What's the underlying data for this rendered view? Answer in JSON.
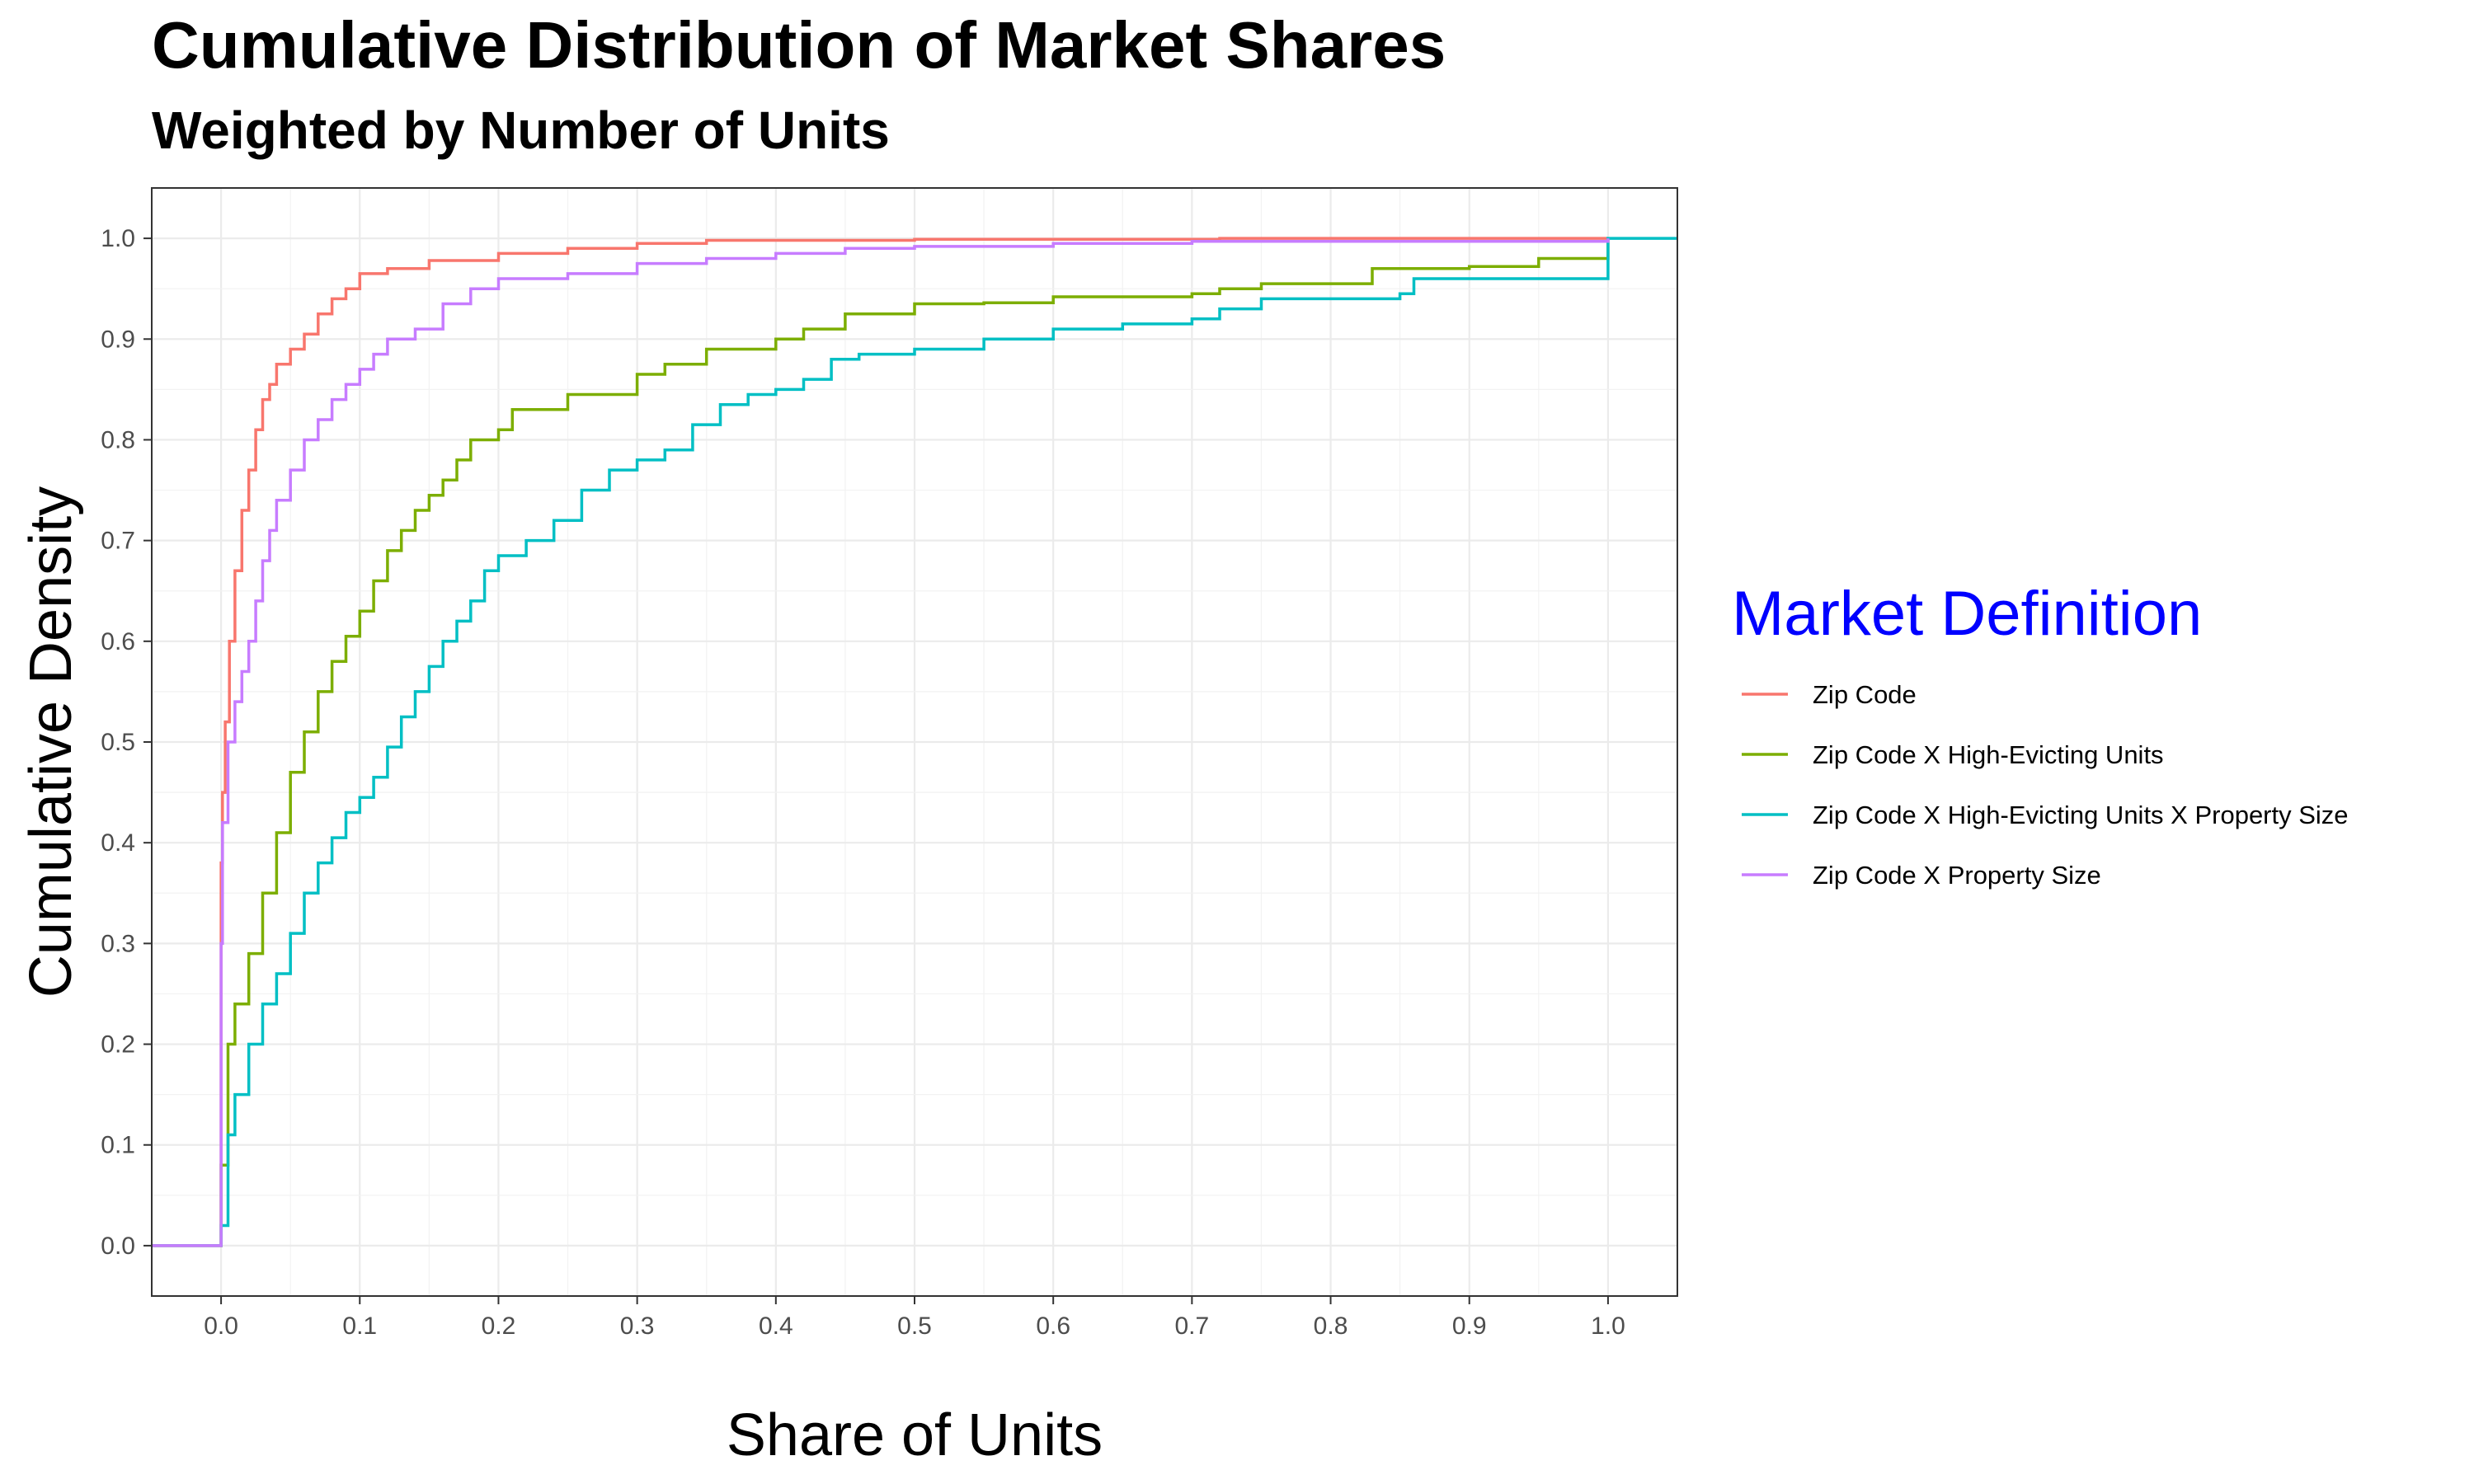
{
  "chart_data": {
    "type": "line",
    "step": true,
    "title": "Cumulative Distribution of Market Shares",
    "subtitle": "Weighted by Number of Units",
    "xlabel": "Share of Units",
    "ylabel": "Cumulative Density",
    "xlim": [
      -0.05,
      1.05
    ],
    "ylim": [
      -0.05,
      1.05
    ],
    "x_ticks": [
      0.0,
      0.1,
      0.2,
      0.3,
      0.4,
      0.5,
      0.6,
      0.7,
      0.8,
      0.9,
      1.0
    ],
    "x_tick_labels": [
      "0.0",
      "0.1",
      "0.2",
      "0.3",
      "0.4",
      "0.5",
      "0.6",
      "0.7",
      "0.8",
      "0.9",
      "1.0"
    ],
    "y_ticks": [
      0.0,
      0.1,
      0.2,
      0.3,
      0.4,
      0.5,
      0.6,
      0.7,
      0.8,
      0.9,
      1.0
    ],
    "y_tick_labels": [
      "0.0",
      "0.1",
      "0.2",
      "0.3",
      "0.4",
      "0.5",
      "0.6",
      "0.7",
      "0.8",
      "0.9",
      "1.0"
    ],
    "grid": true,
    "legend": {
      "title": "Market Definition",
      "title_color": "#0000ff",
      "placement": "right"
    },
    "series": [
      {
        "name": "Zip Code",
        "color": "#F8766D",
        "points": [
          [
            -0.05,
            0
          ],
          [
            0,
            0
          ],
          [
            0,
            0.38
          ],
          [
            0.001,
            0.45
          ],
          [
            0.003,
            0.52
          ],
          [
            0.006,
            0.6
          ],
          [
            0.01,
            0.67
          ],
          [
            0.015,
            0.73
          ],
          [
            0.02,
            0.77
          ],
          [
            0.025,
            0.81
          ],
          [
            0.03,
            0.84
          ],
          [
            0.035,
            0.855
          ],
          [
            0.04,
            0.875
          ],
          [
            0.05,
            0.89
          ],
          [
            0.06,
            0.905
          ],
          [
            0.07,
            0.925
          ],
          [
            0.08,
            0.94
          ],
          [
            0.09,
            0.95
          ],
          [
            0.1,
            0.965
          ],
          [
            0.12,
            0.97
          ],
          [
            0.15,
            0.978
          ],
          [
            0.2,
            0.985
          ],
          [
            0.25,
            0.99
          ],
          [
            0.3,
            0.995
          ],
          [
            0.35,
            0.998
          ],
          [
            0.5,
            0.999
          ],
          [
            0.72,
            1.0
          ],
          [
            1.0,
            1.0
          ]
        ]
      },
      {
        "name": "Zip Code X High-Evicting Units",
        "color": "#7CAE00",
        "points": [
          [
            -0.05,
            0
          ],
          [
            0,
            0
          ],
          [
            0,
            0.08
          ],
          [
            0.005,
            0.2
          ],
          [
            0.01,
            0.24
          ],
          [
            0.02,
            0.29
          ],
          [
            0.03,
            0.35
          ],
          [
            0.04,
            0.41
          ],
          [
            0.05,
            0.47
          ],
          [
            0.06,
            0.51
          ],
          [
            0.07,
            0.55
          ],
          [
            0.08,
            0.58
          ],
          [
            0.09,
            0.605
          ],
          [
            0.1,
            0.63
          ],
          [
            0.11,
            0.66
          ],
          [
            0.12,
            0.69
          ],
          [
            0.13,
            0.71
          ],
          [
            0.14,
            0.73
          ],
          [
            0.15,
            0.745
          ],
          [
            0.16,
            0.76
          ],
          [
            0.17,
            0.78
          ],
          [
            0.18,
            0.8
          ],
          [
            0.2,
            0.81
          ],
          [
            0.21,
            0.83
          ],
          [
            0.25,
            0.845
          ],
          [
            0.3,
            0.865
          ],
          [
            0.32,
            0.875
          ],
          [
            0.35,
            0.89
          ],
          [
            0.4,
            0.9
          ],
          [
            0.42,
            0.91
          ],
          [
            0.45,
            0.925
          ],
          [
            0.5,
            0.935
          ],
          [
            0.55,
            0.936
          ],
          [
            0.6,
            0.942
          ],
          [
            0.7,
            0.945
          ],
          [
            0.72,
            0.95
          ],
          [
            0.75,
            0.955
          ],
          [
            0.8,
            0.955
          ],
          [
            0.83,
            0.97
          ],
          [
            0.9,
            0.972
          ],
          [
            0.95,
            0.98
          ],
          [
            1.0,
            0.985
          ],
          [
            1.0,
            1.0
          ]
        ]
      },
      {
        "name": "Zip Code X High-Evicting Units X Property Size",
        "color": "#00BFC4",
        "points": [
          [
            -0.05,
            0
          ],
          [
            0,
            0
          ],
          [
            0,
            0.02
          ],
          [
            0.005,
            0.11
          ],
          [
            0.01,
            0.15
          ],
          [
            0.02,
            0.2
          ],
          [
            0.03,
            0.24
          ],
          [
            0.04,
            0.27
          ],
          [
            0.05,
            0.31
          ],
          [
            0.06,
            0.35
          ],
          [
            0.07,
            0.38
          ],
          [
            0.08,
            0.405
          ],
          [
            0.09,
            0.43
          ],
          [
            0.1,
            0.445
          ],
          [
            0.11,
            0.465
          ],
          [
            0.12,
            0.495
          ],
          [
            0.13,
            0.525
          ],
          [
            0.14,
            0.55
          ],
          [
            0.15,
            0.575
          ],
          [
            0.16,
            0.6
          ],
          [
            0.17,
            0.62
          ],
          [
            0.18,
            0.64
          ],
          [
            0.19,
            0.67
          ],
          [
            0.2,
            0.685
          ],
          [
            0.22,
            0.7
          ],
          [
            0.24,
            0.72
          ],
          [
            0.26,
            0.75
          ],
          [
            0.28,
            0.77
          ],
          [
            0.3,
            0.78
          ],
          [
            0.32,
            0.79
          ],
          [
            0.34,
            0.815
          ],
          [
            0.36,
            0.835
          ],
          [
            0.38,
            0.845
          ],
          [
            0.4,
            0.85
          ],
          [
            0.42,
            0.86
          ],
          [
            0.44,
            0.88
          ],
          [
            0.46,
            0.885
          ],
          [
            0.5,
            0.89
          ],
          [
            0.55,
            0.9
          ],
          [
            0.6,
            0.91
          ],
          [
            0.65,
            0.915
          ],
          [
            0.7,
            0.92
          ],
          [
            0.72,
            0.93
          ],
          [
            0.75,
            0.94
          ],
          [
            0.85,
            0.945
          ],
          [
            0.86,
            0.96
          ],
          [
            1.0,
            0.96
          ],
          [
            1.0,
            1.0
          ],
          [
            1.05,
            1.0
          ]
        ]
      },
      {
        "name": "Zip Code X Property Size",
        "color": "#C77CFF",
        "points": [
          [
            -0.05,
            0
          ],
          [
            0,
            0
          ],
          [
            0,
            0.3
          ],
          [
            0.001,
            0.42
          ],
          [
            0.005,
            0.5
          ],
          [
            0.01,
            0.54
          ],
          [
            0.015,
            0.57
          ],
          [
            0.02,
            0.6
          ],
          [
            0.025,
            0.64
          ],
          [
            0.03,
            0.68
          ],
          [
            0.035,
            0.71
          ],
          [
            0.04,
            0.74
          ],
          [
            0.05,
            0.77
          ],
          [
            0.06,
            0.8
          ],
          [
            0.07,
            0.82
          ],
          [
            0.08,
            0.84
          ],
          [
            0.09,
            0.855
          ],
          [
            0.1,
            0.87
          ],
          [
            0.11,
            0.885
          ],
          [
            0.12,
            0.9
          ],
          [
            0.14,
            0.91
          ],
          [
            0.16,
            0.935
          ],
          [
            0.18,
            0.95
          ],
          [
            0.2,
            0.96
          ],
          [
            0.25,
            0.965
          ],
          [
            0.3,
            0.975
          ],
          [
            0.35,
            0.98
          ],
          [
            0.4,
            0.985
          ],
          [
            0.45,
            0.99
          ],
          [
            0.5,
            0.992
          ],
          [
            0.6,
            0.995
          ],
          [
            0.7,
            0.997
          ],
          [
            1.0,
            1.0
          ]
        ]
      }
    ]
  }
}
